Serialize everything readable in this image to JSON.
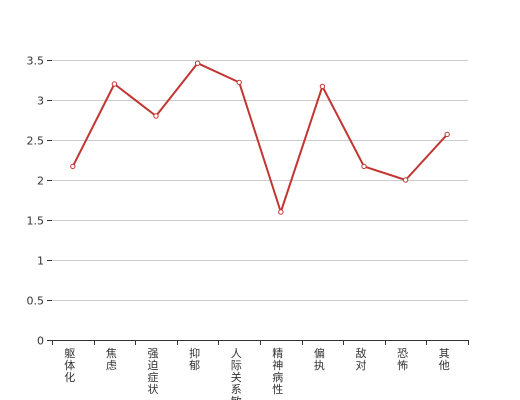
{
  "chart_data": {
    "type": "line",
    "categories": [
      "躯体化",
      "焦虑",
      "强迫症状",
      "抑郁",
      "人际关系敏感",
      "精神病性",
      "偏执",
      "敌对",
      "恐怖",
      "其他"
    ],
    "series": [
      {
        "values": [
          2.17,
          3.2,
          2.8,
          3.46,
          3.22,
          1.6,
          3.17,
          2.17,
          2.0,
          2.57
        ]
      }
    ],
    "y_ticks": [
      "0",
      "0.5",
      "1",
      "1.5",
      "2",
      "2.5",
      "3",
      "3.5"
    ],
    "ylim": [
      0,
      3.5
    ],
    "grid": true,
    "legend": "none",
    "line_color": "#c23531",
    "grid_color": "#cccccc",
    "axis_color": "#333333"
  }
}
